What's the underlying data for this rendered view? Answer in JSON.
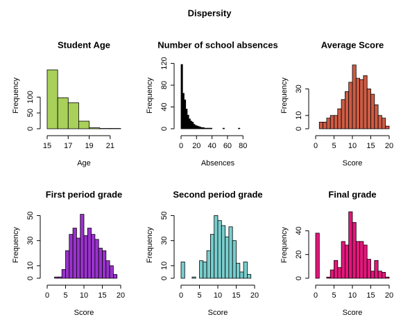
{
  "title": "Dispersity",
  "chart_data": [
    {
      "type": "histogram",
      "title": "Student Age",
      "xlabel": "Age",
      "ylabel": "Frequency",
      "color": "#a8d05a",
      "bins": [
        15,
        16,
        17,
        18,
        19,
        20,
        21,
        22
      ],
      "counts": [
        186,
        98,
        82,
        24,
        3,
        1,
        1
      ],
      "xlim": [
        15,
        22
      ],
      "ylim": [
        0,
        210
      ],
      "xticks": [
        15,
        17,
        19,
        21
      ],
      "yticks": [
        0,
        50,
        100
      ]
    },
    {
      "type": "histogram",
      "title": "Number of school absences",
      "xlabel": "Absences",
      "ylabel": "Frequency",
      "color": "#000000",
      "bins": [
        0,
        2,
        4,
        6,
        8,
        10,
        12,
        14,
        16,
        18,
        20,
        22,
        24,
        26,
        28,
        30,
        32,
        34,
        36,
        38,
        40,
        42,
        44,
        46,
        48,
        50,
        52,
        54,
        56,
        58,
        60,
        62,
        64,
        66,
        68,
        70,
        72,
        74,
        76
      ],
      "counts": [
        118,
        65,
        53,
        36,
        25,
        18,
        14,
        12,
        8,
        6,
        5,
        4,
        3,
        2,
        2,
        1,
        1,
        1,
        1,
        1,
        0,
        0,
        0,
        0,
        0,
        0,
        0,
        1,
        0,
        0,
        0,
        0,
        0,
        0,
        0,
        0,
        0,
        1
      ],
      "xlim": [
        0,
        95
      ],
      "ylim": [
        0,
        122
      ],
      "xticks": [
        0,
        20,
        40,
        60,
        80
      ],
      "yticks": [
        0,
        40,
        80,
        120
      ]
    },
    {
      "type": "histogram",
      "title": "Average Score",
      "xlabel": "Score",
      "ylabel": "Frequency",
      "color": "#cd5c45",
      "bins": [
        1,
        2,
        3,
        4,
        5,
        6,
        7,
        8,
        9,
        10,
        11,
        12,
        13,
        14,
        15,
        16,
        17,
        18,
        19,
        20
      ],
      "counts": [
        5,
        5,
        8,
        10,
        10,
        15,
        22,
        28,
        35,
        48,
        38,
        37,
        40,
        30,
        26,
        18,
        10,
        8,
        2
      ],
      "xlim": [
        0,
        20
      ],
      "ylim": [
        0,
        50
      ],
      "xticks": [
        0,
        5,
        10,
        15,
        20
      ],
      "yticks": [
        0,
        10,
        30
      ]
    },
    {
      "type": "histogram",
      "title": "First period grade",
      "xlabel": "Score",
      "ylabel": "Frequency",
      "color": "#9932cc",
      "bins": [
        2,
        3,
        4,
        5,
        6,
        7,
        8,
        9,
        10,
        11,
        12,
        13,
        14,
        15,
        16,
        17,
        18,
        19
      ],
      "counts": [
        1,
        1,
        7,
        22,
        35,
        40,
        32,
        51,
        34,
        40,
        35,
        31,
        24,
        22,
        14,
        10,
        3
      ],
      "xlim": [
        0,
        20
      ],
      "ylim": [
        0,
        53
      ],
      "xticks": [
        0,
        5,
        10,
        15,
        20
      ],
      "yticks": [
        0,
        10,
        30,
        50
      ]
    },
    {
      "type": "histogram",
      "title": "Second period grade",
      "xlabel": "Score",
      "ylabel": "Frequency",
      "color": "#79cdcd",
      "bins": [
        0,
        1,
        2,
        3,
        4,
        5,
        6,
        7,
        8,
        9,
        10,
        11,
        12,
        13,
        14,
        15,
        16,
        17,
        18,
        19
      ],
      "counts": [
        13,
        0,
        0,
        1,
        0,
        14,
        13,
        22,
        35,
        50,
        46,
        42,
        33,
        41,
        30,
        12,
        5,
        13,
        3
      ],
      "xlim": [
        0,
        20
      ],
      "ylim": [
        0,
        53
      ],
      "xticks": [
        0,
        5,
        10,
        15,
        20
      ],
      "yticks": [
        0,
        10,
        30,
        50
      ]
    },
    {
      "type": "histogram",
      "title": "Final grade",
      "xlabel": "Score",
      "ylabel": "Frequency",
      "color": "#e3177b",
      "bins": [
        0,
        1,
        2,
        3,
        4,
        5,
        6,
        7,
        8,
        9,
        10,
        11,
        12,
        13,
        14,
        15,
        16,
        17,
        18,
        19,
        20
      ],
      "counts": [
        38,
        0,
        0,
        1,
        7,
        15,
        9,
        31,
        28,
        56,
        47,
        31,
        31,
        28,
        16,
        6,
        15,
        6,
        5,
        1
      ],
      "xlim": [
        0,
        20
      ],
      "ylim": [
        0,
        56
      ],
      "xticks": [
        0,
        5,
        10,
        15,
        20
      ],
      "yticks": [
        0,
        20,
        40
      ]
    }
  ]
}
